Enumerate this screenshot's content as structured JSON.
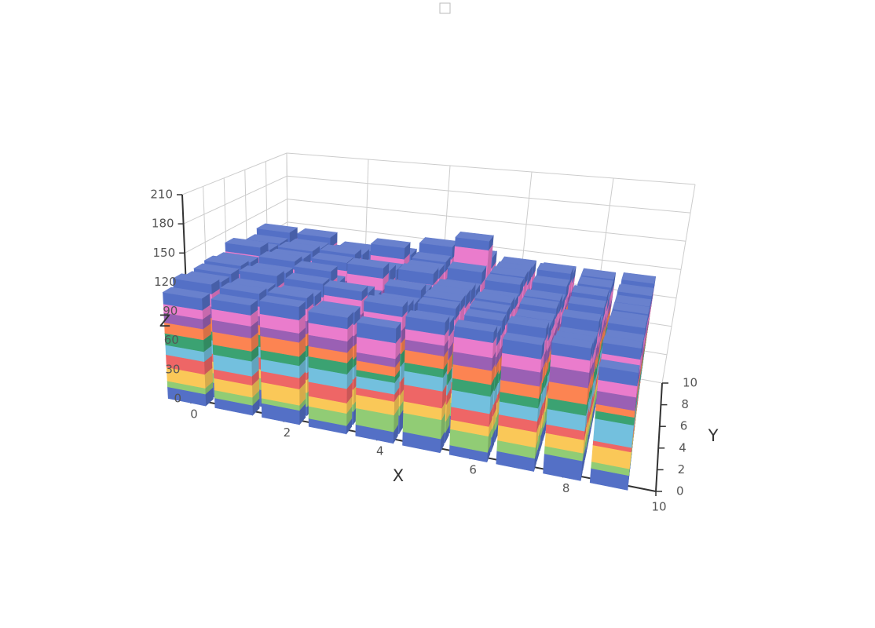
{
  "chart_data": {
    "type": "bar3d",
    "x": [
      0,
      1,
      2,
      3,
      4,
      5,
      6,
      7,
      8,
      9
    ],
    "y": [
      0,
      1,
      2,
      3,
      4,
      5,
      6,
      7,
      8,
      9
    ],
    "x_label": "X",
    "y_label": "Y",
    "z_label": "Z",
    "xlim": [
      0,
      10
    ],
    "ylim": [
      0,
      10
    ],
    "zlim": [
      0,
      210
    ],
    "xticks": [
      0,
      2,
      4,
      6,
      8,
      10
    ],
    "yticks": [
      0,
      2,
      4,
      6,
      8,
      10
    ],
    "zticks": [
      0,
      30,
      60,
      90,
      120,
      150,
      180,
      210
    ],
    "grid": true,
    "series": [
      {
        "color": "#5470c6",
        "values": [
          [
            12,
            15,
            9,
            18,
            11,
            14,
            20,
            8,
            16,
            13
          ],
          [
            10,
            17,
            13,
            9,
            15,
            19,
            12,
            14,
            11,
            18
          ],
          [
            14,
            9,
            16,
            12,
            20,
            10,
            13,
            17,
            15,
            9
          ],
          [
            8,
            13,
            11,
            16,
            12,
            18,
            14,
            10,
            19,
            12
          ],
          [
            11,
            18,
            14,
            10,
            16,
            13,
            9,
            15,
            12,
            17
          ],
          [
            13,
            10,
            17,
            15,
            9,
            12,
            16,
            11,
            18,
            14
          ],
          [
            9,
            14,
            12,
            19,
            13,
            11,
            15,
            17,
            10,
            16
          ],
          [
            12,
            11,
            15,
            13,
            18,
            9,
            14,
            12,
            16,
            10
          ],
          [
            18,
            16,
            10,
            14,
            11,
            17,
            12,
            9,
            13,
            15
          ],
          [
            13,
            12,
            9,
            16,
            14,
            10,
            18,
            13,
            11,
            12
          ]
        ]
      },
      {
        "color": "#91cc75",
        "values": [
          [
            6,
            10,
            14,
            8,
            12,
            9,
            11,
            15,
            7,
            13
          ],
          [
            8,
            12,
            6,
            14,
            10,
            13,
            9,
            11,
            16,
            7
          ],
          [
            5,
            14,
            10,
            9,
            13,
            8,
            15,
            12,
            6,
            11
          ],
          [
            12,
            7,
            15,
            11,
            6,
            14,
            10,
            9,
            13,
            8
          ],
          [
            16,
            9,
            8,
            13,
            11,
            7,
            14,
            10,
            12,
            15
          ],
          [
            18,
            11,
            13,
            7,
            14,
            10,
            8,
            15,
            9,
            12
          ],
          [
            15,
            8,
            12,
            10,
            9,
            16,
            11,
            7,
            14,
            10
          ],
          [
            10,
            13,
            7,
            15,
            12,
            11,
            9,
            14,
            8,
            13
          ],
          [
            7,
            10,
            14,
            9,
            8,
            12,
            15,
            11,
            10,
            6
          ],
          [
            6,
            15,
            11,
            12,
            10,
            14,
            7,
            13,
            9,
            11
          ]
        ]
      },
      {
        "color": "#fac858",
        "values": [
          [
            14,
            12,
            10,
            16,
            13,
            11,
            9,
            14,
            12,
            15
          ],
          [
            12,
            9,
            15,
            11,
            14,
            10,
            16,
            13,
            9,
            12
          ],
          [
            16,
            13,
            11,
            14,
            9,
            15,
            12,
            10,
            14,
            13
          ],
          [
            10,
            15,
            13,
            9,
            16,
            12,
            11,
            14,
            10,
            15
          ],
          [
            13,
            11,
            16,
            12,
            10,
            14,
            13,
            9,
            15,
            11
          ],
          [
            11,
            16,
            9,
            14,
            12,
            13,
            10,
            16,
            11,
            14
          ],
          [
            9,
            12,
            14,
            11,
            15,
            10,
            13,
            12,
            16,
            9
          ],
          [
            14,
            10,
            12,
            16,
            11,
            15,
            9,
            13,
            12,
            14
          ],
          [
            12,
            14,
            11,
            10,
            13,
            9,
            16,
            12,
            14,
            10
          ],
          [
            15,
            11,
            13,
            14,
            12,
            16,
            10,
            11,
            13,
            12
          ]
        ]
      },
      {
        "color": "#ee6666",
        "values": [
          [
            13,
            8,
            11,
            7,
            12,
            10,
            14,
            9,
            11,
            8
          ],
          [
            9,
            12,
            8,
            13,
            7,
            11,
            10,
            12,
            8,
            14
          ],
          [
            11,
            7,
            13,
            10,
            12,
            8,
            9,
            14,
            11,
            7
          ],
          [
            14,
            10,
            9,
            12,
            8,
            13,
            11,
            7,
            12,
            10
          ],
          [
            7,
            13,
            12,
            8,
            14,
            9,
            10,
            11,
            13,
            12
          ],
          [
            16,
            9,
            11,
            13,
            10,
            12,
            8,
            14,
            9,
            11
          ],
          [
            12,
            11,
            8,
            10,
            13,
            9,
            14,
            10,
            12,
            8
          ],
          [
            10,
            14,
            12,
            9,
            11,
            13,
            8,
            12,
            10,
            13
          ],
          [
            8,
            12,
            10,
            14,
            9,
            11,
            13,
            8,
            12,
            9
          ],
          [
            4,
            9,
            14,
            11,
            12,
            8,
            10,
            13,
            9,
            12
          ]
        ]
      },
      {
        "color": "#73c0de",
        "values": [
          [
            10,
            14,
            12,
            9,
            15,
            11,
            13,
            10,
            14,
            12
          ],
          [
            15,
            11,
            13,
            16,
            10,
            14,
            12,
            15,
            11,
            13
          ],
          [
            12,
            16,
            10,
            14,
            13,
            9,
            15,
            11,
            12,
            16
          ],
          [
            14,
            12,
            16,
            11,
            10,
            15,
            13,
            12,
            16,
            11
          ],
          [
            11,
            15,
            13,
            14,
            12,
            10,
            16,
            14,
            11,
            13
          ],
          [
            13,
            10,
            15,
            12,
            16,
            14,
            11,
            13,
            15,
            10
          ],
          [
            16,
            13,
            11,
            15,
            12,
            10,
            14,
            16,
            13,
            12
          ],
          [
            12,
            15,
            14,
            10,
            13,
            16,
            12,
            11,
            14,
            15
          ],
          [
            14,
            11,
            12,
            16,
            15,
            13,
            10,
            14,
            12,
            11
          ],
          [
            20,
            13,
            15,
            12,
            11,
            14,
            16,
            10,
            13,
            15
          ]
        ]
      },
      {
        "color": "#3ba272",
        "values": [
          [
            12,
            9,
            11,
            13,
            10,
            8,
            12,
            11,
            9,
            10
          ],
          [
            10,
            12,
            9,
            11,
            13,
            10,
            8,
            12,
            11,
            9
          ],
          [
            9,
            11,
            12,
            10,
            8,
            13,
            11,
            9,
            12,
            10
          ],
          [
            11,
            8,
            10,
            12,
            11,
            9,
            13,
            10,
            8,
            12
          ],
          [
            6,
            12,
            11,
            9,
            10,
            12,
            8,
            13,
            11,
            9
          ],
          [
            8,
            10,
            13,
            11,
            9,
            11,
            12,
            8,
            10,
            13
          ],
          [
            11,
            13,
            9,
            8,
            12,
            10,
            11,
            13,
            9,
            11
          ],
          [
            9,
            10,
            12,
            13,
            8,
            11,
            10,
            9,
            13,
            8
          ],
          [
            10,
            9,
            8,
            11,
            12,
            10,
            9,
            11,
            10,
            12
          ],
          [
            7,
            11,
            10,
            9,
            13,
            12,
            11,
            10,
            12,
            9
          ]
        ]
      },
      {
        "color": "#fc8452",
        "values": [
          [
            11,
            14,
            13,
            10,
            12,
            15,
            11,
            13,
            10,
            14
          ],
          [
            13,
            10,
            14,
            12,
            11,
            13,
            15,
            10,
            14,
            12
          ],
          [
            14,
            12,
            10,
            15,
            13,
            11,
            12,
            14,
            13,
            10
          ],
          [
            10,
            13,
            15,
            11,
            14,
            12,
            10,
            13,
            11,
            15
          ],
          [
            9,
            11,
            12,
            14,
            10,
            13,
            15,
            12,
            14,
            11
          ],
          [
            12,
            14,
            10,
            13,
            15,
            11,
            13,
            10,
            12,
            14
          ],
          [
            13,
            10,
            14,
            12,
            11,
            15,
            12,
            14,
            10,
            13
          ],
          [
            11,
            15,
            12,
            10,
            14,
            12,
            13,
            11,
            15,
            10
          ],
          [
            15,
            12,
            13,
            11,
            10,
            14,
            11,
            13,
            12,
            15
          ],
          [
            6,
            13,
            11,
            14,
            12,
            10,
            14,
            12,
            11,
            13
          ]
        ]
      },
      {
        "color": "#9a60b4",
        "values": [
          [
            10,
            12,
            9,
            11,
            13,
            10,
            12,
            9,
            11,
            12
          ],
          [
            12,
            9,
            11,
            13,
            10,
            12,
            9,
            11,
            13,
            10
          ],
          [
            9,
            13,
            12,
            10,
            11,
            9,
            13,
            12,
            10,
            11
          ],
          [
            11,
            10,
            13,
            12,
            9,
            11,
            10,
            13,
            12,
            9
          ],
          [
            8,
            12,
            10,
            9,
            12,
            13,
            11,
            10,
            9,
            13
          ],
          [
            10,
            11,
            12,
            13,
            10,
            9,
            12,
            11,
            13,
            10
          ],
          [
            12,
            9,
            10,
            11,
            13,
            12,
            9,
            10,
            11,
            12
          ],
          [
            13,
            12,
            11,
            10,
            9,
            11,
            13,
            12,
            10,
            11
          ],
          [
            14,
            10,
            13,
            12,
            11,
            10,
            12,
            9,
            13,
            10
          ],
          [
            12,
            11,
            9,
            13,
            10,
            12,
            11,
            13,
            9,
            12
          ]
        ]
      },
      {
        "color": "#ea7ccc",
        "values": [
          [
            9,
            13,
            11,
            12,
            10,
            14,
            12,
            11,
            13,
            10
          ],
          [
            11,
            10,
            13,
            9,
            12,
            11,
            14,
            10,
            12,
            13
          ],
          [
            13,
            12,
            9,
            11,
            14,
            10,
            11,
            13,
            9,
            12
          ],
          [
            12,
            11,
            14,
            10,
            9,
            13,
            12,
            11,
            14,
            10
          ],
          [
            15,
            13,
            10,
            12,
            11,
            9,
            13,
            14,
            10,
            12
          ],
          [
            10,
            12,
            11,
            14,
            13,
            12,
            9,
            10,
            40,
            11
          ],
          [
            14,
            11,
            13,
            9,
            10,
            12,
            11,
            13,
            10,
            14
          ],
          [
            12,
            13,
            10,
            11,
            14,
            9,
            12,
            10,
            13,
            11
          ],
          [
            11,
            9,
            12,
            13,
            10,
            11,
            14,
            12,
            9,
            13
          ],
          [
            10,
            14,
            12,
            10,
            11,
            13,
            9,
            12,
            14,
            10
          ]
        ]
      },
      {
        "color": "#5470c6",
        "values": [
          [
            12,
            10,
            13,
            11,
            9,
            12,
            10,
            14,
            11,
            13
          ],
          [
            10,
            13,
            11,
            12,
            14,
            9,
            13,
            11,
            10,
            12
          ],
          [
            13,
            11,
            10,
            14,
            12,
            13,
            9,
            10,
            12,
            11
          ],
          [
            11,
            12,
            9,
            13,
            10,
            11,
            14,
            12,
            13,
            10
          ],
          [
            14,
            10,
            12,
            11,
            13,
            10,
            12,
            9,
            11,
            14
          ],
          [
            12,
            13,
            11,
            10,
            12,
            14,
            11,
            13,
            10,
            12
          ],
          [
            10,
            12,
            14,
            13,
            11,
            9,
            12,
            10,
            14,
            11
          ],
          [
            13,
            11,
            12,
            9,
            10,
            13,
            11,
            14,
            12,
            10
          ],
          [
            11,
            14,
            10,
            12,
            13,
            12,
            10,
            11,
            9,
            13
          ],
          [
            12,
            10,
            13,
            11,
            14,
            10,
            12,
            13,
            11,
            9
          ]
        ]
      }
    ]
  }
}
